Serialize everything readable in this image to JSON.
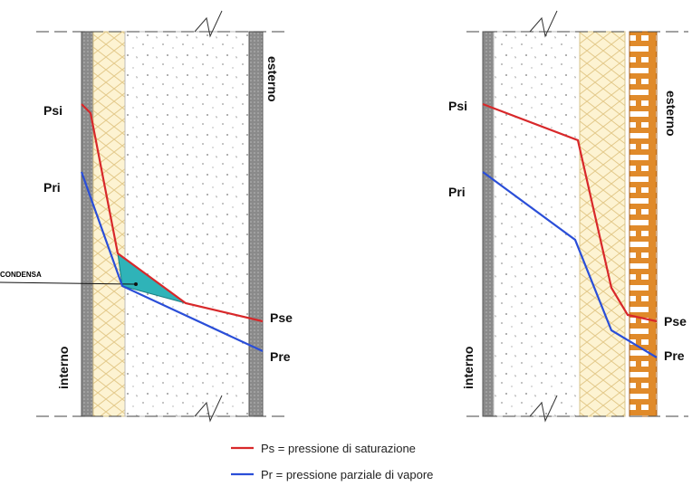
{
  "diagrams": [
    {
      "labels": {
        "psi": "Psi",
        "pri": "Pri",
        "pse": "Pse",
        "pre": "Pre",
        "outside": "esterno",
        "inside": "interno"
      },
      "condensation": "CONDENSA"
    },
    {
      "labels": {
        "psi": "Psi",
        "pri": "Pri",
        "pse": "Pse",
        "pre": "Pre",
        "outside": "esterno",
        "inside": "interno"
      }
    }
  ],
  "legend": [
    {
      "text": "Ps = pressione di saturazione"
    },
    {
      "text": "Pr = pressione parziale di vapore"
    }
  ]
}
